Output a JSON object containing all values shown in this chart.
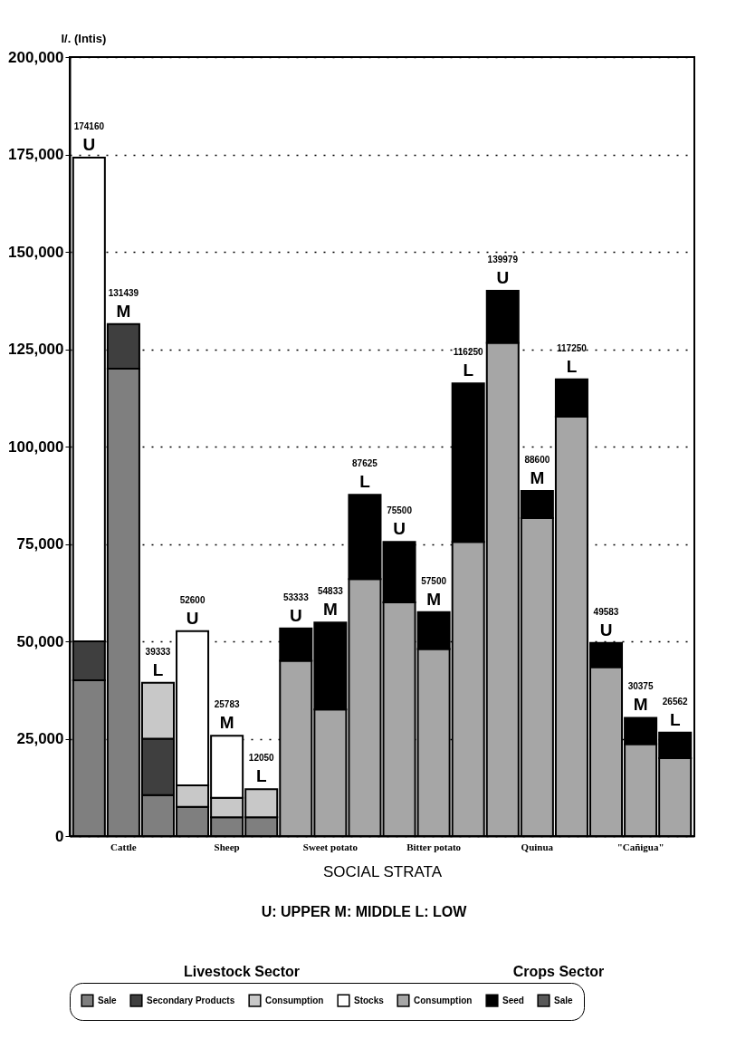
{
  "chart_data": {
    "type": "bar",
    "stacked": true,
    "ylabel": "I/. (Intis)",
    "xlabel": "SOCIAL STRATA",
    "categories": [
      null,
      "Cattle",
      null,
      null,
      "Sheep",
      null,
      null,
      "Sweet potato",
      null,
      null,
      "Bitter potato",
      null,
      null,
      "Quinua",
      null,
      null,
      "\"Cañigua\"",
      null
    ],
    "series": [
      {
        "name": "Sale",
        "color": "#7f7f7f",
        "values": [
          40000,
          120000,
          10500,
          7500,
          4800,
          4800,
          null,
          null,
          null,
          null,
          null,
          null,
          null,
          null,
          null,
          null,
          null,
          null
        ]
      },
      {
        "name": "Secondary Products",
        "color": "#3f3f3f",
        "values": [
          10000,
          11439,
          14500,
          null,
          null,
          null,
          null,
          null,
          null,
          null,
          null,
          null,
          null,
          null,
          null,
          null,
          null,
          null
        ]
      },
      {
        "name": "Consumption",
        "color": "#c8c8c8",
        "values": [
          null,
          null,
          14333,
          5500,
          5000,
          7250,
          null,
          null,
          null,
          null,
          null,
          null,
          null,
          null,
          null,
          null,
          null,
          null
        ]
      },
      {
        "name": "Stocks",
        "color": "#ffffff",
        "values": [
          124160,
          null,
          null,
          39600,
          15983,
          null,
          null,
          null,
          null,
          null,
          null,
          null,
          null,
          null,
          null,
          null,
          null,
          null
        ]
      },
      {
        "name": "Consumption",
        "color": "#a6a6a6",
        "values": [
          null,
          null,
          null,
          null,
          null,
          null,
          45000,
          32500,
          66000,
          60000,
          48000,
          75500,
          126600,
          81600,
          107700,
          43400,
          23600,
          20000
        ]
      },
      {
        "name": "Seed",
        "color": "#000000",
        "values": [
          null,
          null,
          null,
          null,
          null,
          null,
          8333,
          22333,
          21625,
          15500,
          9500,
          40750,
          13379,
          7000,
          9550,
          6183,
          6775,
          6562
        ]
      },
      {
        "name": "Sale",
        "color": "#595959",
        "values": [
          null,
          null,
          null,
          null,
          null,
          null,
          null,
          null,
          null,
          null,
          null,
          null,
          null,
          null,
          null,
          null,
          null,
          null
        ]
      }
    ],
    "totals": [
      "174160",
      "131439",
      "39333",
      "52600",
      "25783",
      "12050",
      "53333",
      "54833",
      "87625",
      "75500",
      "57500",
      "116250",
      "139979",
      "88600",
      "117250",
      "49583",
      "30375",
      "26562"
    ],
    "ylim": [
      0,
      200000
    ],
    "yticks": [
      {
        "value": 0,
        "label": "0"
      },
      {
        "value": 25000,
        "label": "25,000"
      },
      {
        "value": 50000,
        "label": "50,000"
      },
      {
        "value": 75000,
        "label": "75,000"
      },
      {
        "value": 100000,
        "label": "100,000"
      },
      {
        "value": 125000,
        "label": "125,000"
      },
      {
        "value": 150000,
        "label": "150,000"
      },
      {
        "value": 175000,
        "label": "175,000"
      },
      {
        "value": 200000,
        "label": "200,000"
      }
    ],
    "grid": "y",
    "legend": "bottom",
    "annotations": [
      "U: UPPER   M: MIDDLE   L: LOW",
      "Livestock Sector",
      "Crops Sector",
      {
        "text": "U",
        "y": 174160
      },
      {
        "text": "M",
        "y": 131439
      },
      {
        "text": "L",
        "y": 39333
      },
      {
        "text": "U",
        "y": 52600
      },
      {
        "text": "M",
        "y": 25783
      },
      {
        "text": "L",
        "y": 12050
      },
      {
        "text": "U",
        "y": 53333
      },
      {
        "text": "M",
        "y": 54833
      },
      {
        "text": "L",
        "y": 87625
      },
      {
        "text": "U",
        "y": 75500
      },
      {
        "text": "M",
        "y": 57500
      },
      {
        "text": "L",
        "y": 116250
      },
      {
        "text": "U",
        "y": 139979
      },
      {
        "text": "M",
        "y": 88600
      },
      {
        "text": "L",
        "y": 117250
      },
      {
        "text": "U",
        "y": 49583
      },
      {
        "text": "M",
        "y": 30375
      },
      {
        "text": "L",
        "y": 26562
      }
    ]
  }
}
